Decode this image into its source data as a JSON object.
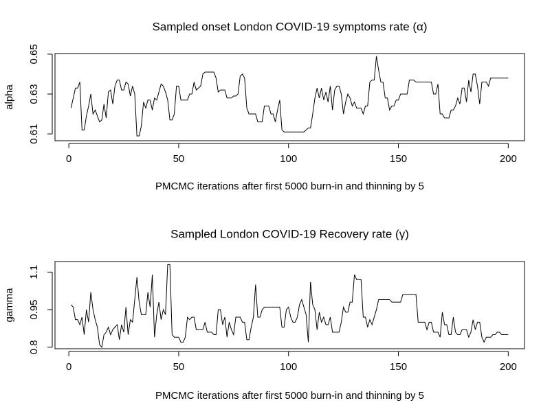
{
  "chart_data": [
    {
      "type": "line",
      "title": "Sampled onset London COVID-19 symptoms rate (α)",
      "x_label": "PMCMC iterations after first 5000 burn-in and thinning by 5",
      "y_label": "alpha",
      "x": [
        1,
        2,
        3,
        4,
        5,
        6,
        7,
        8,
        9,
        10,
        11,
        12,
        13,
        14,
        15,
        16,
        17,
        18,
        19,
        20,
        21,
        22,
        23,
        24,
        25,
        26,
        27,
        28,
        29,
        30,
        31,
        32,
        33,
        34,
        35,
        36,
        37,
        38,
        39,
        40,
        41,
        42,
        43,
        44,
        45,
        46,
        47,
        48,
        49,
        50,
        51,
        52,
        53,
        54,
        55,
        56,
        57,
        58,
        59,
        60,
        61,
        62,
        63,
        64,
        65,
        66,
        67,
        68,
        69,
        70,
        71,
        72,
        73,
        74,
        75,
        76,
        77,
        78,
        79,
        80,
        81,
        82,
        83,
        84,
        85,
        86,
        87,
        88,
        89,
        90,
        91,
        92,
        93,
        94,
        95,
        96,
        97,
        98,
        99,
        100,
        101,
        102,
        103,
        104,
        105,
        106,
        107,
        108,
        109,
        110,
        111,
        112,
        113,
        114,
        115,
        116,
        117,
        118,
        119,
        120,
        121,
        122,
        123,
        124,
        125,
        126,
        127,
        128,
        129,
        130,
        131,
        132,
        133,
        134,
        135,
        136,
        137,
        138,
        139,
        140,
        141,
        142,
        143,
        144,
        145,
        146,
        147,
        148,
        149,
        150,
        151,
        152,
        153,
        154,
        155,
        156,
        157,
        158,
        159,
        160,
        161,
        162,
        163,
        164,
        165,
        166,
        167,
        168,
        169,
        170,
        171,
        172,
        173,
        174,
        175,
        176,
        177,
        178,
        179,
        180,
        181,
        182,
        183,
        184,
        185,
        186,
        187,
        188,
        189,
        190,
        191,
        192,
        193,
        194,
        195,
        196,
        197,
        198,
        199,
        200
      ],
      "series": [
        {
          "name": "alpha",
          "color": "#000000",
          "values": [
            0.623,
            0.628,
            0.633,
            0.633,
            0.636,
            0.612,
            0.612,
            0.619,
            0.624,
            0.63,
            0.62,
            0.622,
            0.619,
            0.616,
            0.617,
            0.625,
            0.618,
            0.631,
            0.632,
            0.625,
            0.634,
            0.637,
            0.637,
            0.632,
            0.632,
            0.636,
            0.635,
            0.629,
            0.634,
            0.63,
            0.609,
            0.609,
            0.614,
            0.626,
            0.623,
            0.627,
            0.627,
            0.622,
            0.628,
            0.627,
            0.631,
            0.635,
            0.634,
            0.631,
            0.627,
            0.617,
            0.617,
            0.62,
            0.634,
            0.634,
            0.627,
            0.627,
            0.627,
            0.627,
            0.63,
            0.63,
            0.636,
            0.632,
            0.633,
            0.634,
            0.64,
            0.641,
            0.641,
            0.641,
            0.641,
            0.641,
            0.638,
            0.631,
            0.632,
            0.632,
            0.632,
            0.628,
            0.628,
            0.628,
            0.629,
            0.629,
            0.63,
            0.639,
            0.64,
            0.638,
            0.623,
            0.62,
            0.62,
            0.62,
            0.62,
            0.616,
            0.616,
            0.616,
            0.624,
            0.624,
            0.624,
            0.62,
            0.62,
            0.616,
            0.622,
            0.627,
            0.612,
            0.611,
            0.611,
            0.611,
            0.611,
            0.611,
            0.611,
            0.611,
            0.611,
            0.611,
            0.611,
            0.612,
            0.613,
            0.613,
            0.62,
            0.628,
            0.633,
            0.628,
            0.633,
            0.627,
            0.631,
            0.626,
            0.634,
            0.622,
            0.632,
            0.634,
            0.634,
            0.63,
            0.62,
            0.626,
            0.63,
            0.628,
            0.624,
            0.626,
            0.623,
            0.623,
            0.623,
            0.62,
            0.624,
            0.624,
            0.636,
            0.637,
            0.637,
            0.649,
            0.642,
            0.636,
            0.636,
            0.628,
            0.628,
            0.622,
            0.624,
            0.624,
            0.627,
            0.627,
            0.63,
            0.63,
            0.63,
            0.63,
            0.637,
            0.637,
            0.637,
            0.636,
            0.636,
            0.636,
            0.636,
            0.636,
            0.636,
            0.636,
            0.636,
            0.63,
            0.63,
            0.635,
            0.62,
            0.62,
            0.618,
            0.618,
            0.618,
            0.622,
            0.622,
            0.624,
            0.628,
            0.625,
            0.633,
            0.633,
            0.626,
            0.637,
            0.631,
            0.64,
            0.64,
            0.634,
            0.625,
            0.636,
            0.636,
            0.636,
            0.634,
            0.638,
            0.638,
            0.638,
            0.638,
            0.638,
            0.638,
            0.638,
            0.638,
            0.638
          ]
        }
      ],
      "xlim": [
        -6.3,
        207.4
      ],
      "xticks": [
        0,
        50,
        100,
        150,
        200
      ],
      "ylim": [
        0.6066,
        0.6503
      ],
      "yticks": [
        0.61,
        0.63,
        0.65
      ]
    },
    {
      "type": "line",
      "title": "Sampled London COVID-19 Recovery rate (γ)",
      "x_label": "PMCMC iterations after first 5000 burn-in and thinning by 5",
      "y_label": "gamma",
      "x": [
        1,
        2,
        3,
        4,
        5,
        6,
        7,
        8,
        9,
        10,
        11,
        12,
        13,
        14,
        15,
        16,
        17,
        18,
        19,
        20,
        21,
        22,
        23,
        24,
        25,
        26,
        27,
        28,
        29,
        30,
        31,
        32,
        33,
        34,
        35,
        36,
        37,
        38,
        39,
        40,
        41,
        42,
        43,
        44,
        45,
        46,
        47,
        48,
        49,
        50,
        51,
        52,
        53,
        54,
        55,
        56,
        57,
        58,
        59,
        60,
        61,
        62,
        63,
        64,
        65,
        66,
        67,
        68,
        69,
        70,
        71,
        72,
        73,
        74,
        75,
        76,
        77,
        78,
        79,
        80,
        81,
        82,
        83,
        84,
        85,
        86,
        87,
        88,
        89,
        90,
        91,
        92,
        93,
        94,
        95,
        96,
        97,
        98,
        99,
        100,
        101,
        102,
        103,
        104,
        105,
        106,
        107,
        108,
        109,
        110,
        111,
        112,
        113,
        114,
        115,
        116,
        117,
        118,
        119,
        120,
        121,
        122,
        123,
        124,
        125,
        126,
        127,
        128,
        129,
        130,
        131,
        132,
        133,
        134,
        135,
        136,
        137,
        138,
        139,
        140,
        141,
        142,
        143,
        144,
        145,
        146,
        147,
        148,
        149,
        150,
        151,
        152,
        153,
        154,
        155,
        156,
        157,
        158,
        159,
        160,
        161,
        162,
        163,
        164,
        165,
        166,
        167,
        168,
        169,
        170,
        171,
        172,
        173,
        174,
        175,
        176,
        177,
        178,
        179,
        180,
        181,
        182,
        183,
        184,
        185,
        186,
        187,
        188,
        189,
        190,
        191,
        192,
        193,
        194,
        195,
        196,
        197,
        198,
        199,
        200
      ],
      "series": [
        {
          "name": "gamma",
          "color": "#000000",
          "values": [
            0.97,
            0.96,
            0.91,
            0.91,
            0.89,
            0.92,
            0.85,
            0.95,
            0.9,
            1.02,
            0.95,
            0.91,
            0.88,
            0.81,
            0.8,
            0.85,
            0.86,
            0.88,
            0.85,
            0.87,
            0.88,
            0.89,
            0.83,
            0.89,
            0.86,
            0.96,
            0.85,
            0.91,
            0.9,
            0.99,
            1.08,
            0.98,
            0.93,
            0.93,
            0.93,
            1.02,
            0.96,
            1.09,
            0.84,
            0.93,
            0.98,
            0.91,
            0.95,
            0.93,
            1.13,
            1.13,
            0.85,
            0.84,
            0.84,
            0.84,
            0.82,
            0.82,
            0.84,
            0.92,
            0.91,
            0.92,
            0.92,
            0.87,
            0.87,
            0.87,
            0.87,
            0.9,
            0.86,
            0.86,
            0.86,
            0.85,
            0.85,
            0.95,
            0.95,
            0.89,
            0.92,
            0.84,
            0.9,
            0.87,
            0.85,
            0.92,
            0.92,
            0.92,
            0.9,
            0.9,
            0.83,
            0.83,
            0.88,
            0.92,
            1.05,
            0.92,
            0.92,
            0.95,
            0.96,
            0.96,
            0.96,
            0.96,
            0.96,
            0.96,
            0.96,
            0.96,
            0.88,
            0.88,
            0.95,
            0.96,
            0.92,
            0.9,
            0.9,
            0.92,
            0.97,
            0.99,
            0.96,
            0.93,
            0.82,
            1.06,
            0.97,
            0.95,
            0.87,
            0.94,
            0.9,
            0.92,
            0.89,
            0.89,
            0.92,
            0.86,
            0.86,
            0.86,
            0.86,
            0.9,
            0.96,
            0.94,
            0.94,
            0.98,
            0.98,
            1.09,
            1.07,
            1.07,
            1.07,
            0.92,
            0.92,
            0.88,
            0.91,
            0.89,
            0.92,
            0.95,
            0.99,
            0.99,
            0.99,
            0.99,
            0.99,
            0.99,
            0.98,
            0.98,
            0.98,
            0.98,
            0.98,
            1.01,
            1.01,
            1.01,
            1.01,
            1.01,
            1.01,
            1.01,
            0.9,
            0.9,
            0.9,
            0.9,
            0.87,
            0.9,
            0.9,
            0.86,
            0.86,
            0.86,
            0.84,
            0.94,
            0.89,
            0.89,
            0.85,
            0.85,
            0.92,
            0.86,
            0.85,
            0.85,
            0.87,
            0.87,
            0.87,
            0.84,
            0.86,
            0.91,
            0.87,
            0.9,
            0.9,
            0.84,
            0.82,
            0.84,
            0.84,
            0.84,
            0.85,
            0.85,
            0.86,
            0.86,
            0.85,
            0.85,
            0.85,
            0.85
          ]
        }
      ],
      "xlim": [
        -6.3,
        207.4
      ],
      "xticks": [
        0,
        50,
        100,
        150,
        200
      ],
      "ylim": [
        0.794,
        1.142
      ],
      "yticks": [
        0.8,
        0.95,
        1.1
      ]
    }
  ]
}
